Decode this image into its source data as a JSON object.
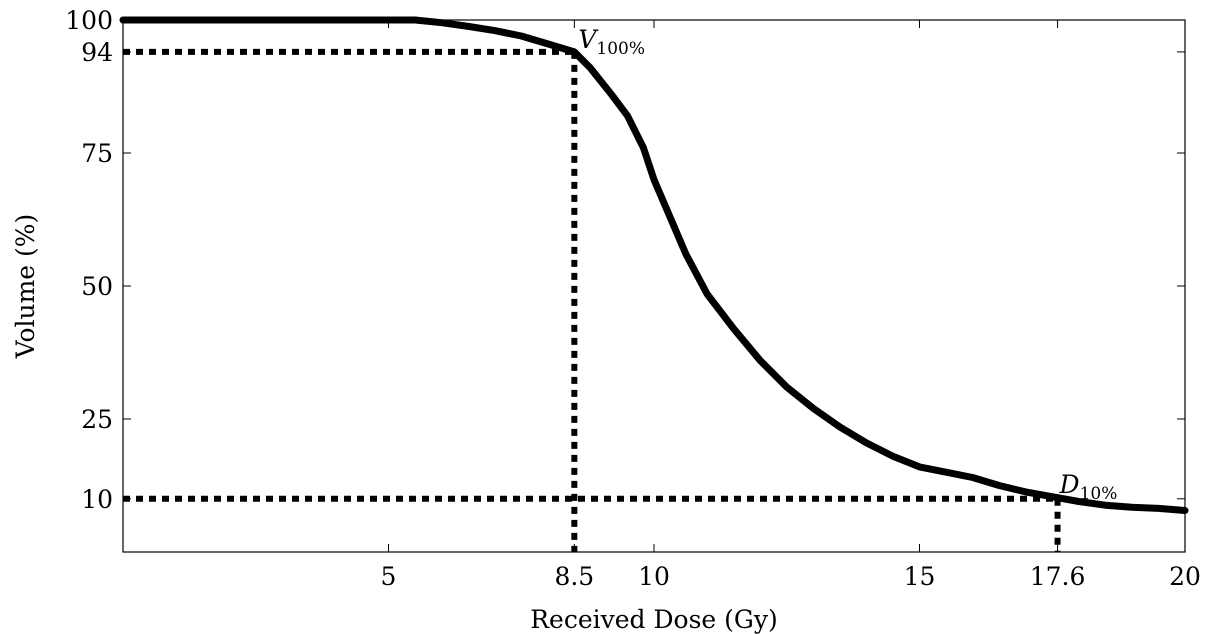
{
  "chart_data": {
    "type": "line",
    "title": "",
    "xlabel": "Received Dose (Gy)",
    "ylabel": "Volume (%)",
    "xlim": [
      0,
      20
    ],
    "ylim": [
      0,
      100
    ],
    "grid": false,
    "x_ticks": [
      5,
      8.5,
      10,
      15,
      17.6,
      20
    ],
    "x_tick_labels": [
      "5",
      "8.5",
      "10",
      "15",
      "17.6",
      "20"
    ],
    "y_ticks": [
      10,
      25,
      50,
      75,
      94,
      100
    ],
    "y_tick_labels": [
      "10",
      "25",
      "50",
      "75",
      "94",
      "100"
    ],
    "series": [
      {
        "x": [
          0,
          1,
          2,
          3,
          4,
          5,
          5.5,
          6,
          6.5,
          7,
          7.5,
          8,
          8.5,
          8.8,
          9.2,
          9.5,
          9.8,
          10,
          10.3,
          10.6,
          11,
          11.5,
          12,
          12.5,
          13,
          13.5,
          14,
          14.5,
          15,
          15.5,
          16,
          16.5,
          17,
          17.6,
          18,
          18.5,
          19,
          19.5,
          20
        ],
        "y": [
          100,
          100,
          100,
          100,
          100,
          100,
          100,
          99.5,
          98.8,
          98,
          97,
          95.5,
          94,
          91,
          86,
          82,
          76,
          70,
          63,
          56,
          48.5,
          42,
          36,
          31,
          27,
          23.5,
          20.5,
          18,
          16,
          15,
          14,
          12.5,
          11.3,
          10.2,
          9.5,
          8.8,
          8.4,
          8.2,
          7.8
        ]
      }
    ],
    "reference_lines": [
      {
        "label": "V100%",
        "x": 8.5,
        "y": 94
      },
      {
        "label": "D10%",
        "x": 17.6,
        "y": 10
      }
    ],
    "annotations": [
      {
        "main": "V",
        "sub": "100%",
        "x": 8.5,
        "y": 94
      },
      {
        "main": "D",
        "sub": "10%",
        "x": 17.6,
        "y": 10
      }
    ]
  }
}
